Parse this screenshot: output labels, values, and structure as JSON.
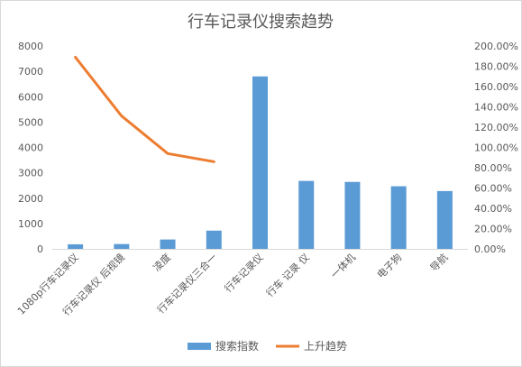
{
  "chart_data": {
    "type": "bar",
    "title": "行车记录仪搜索趋势",
    "categories": [
      "1080p行车记录仪",
      "行车记录仪 后视镜",
      "凌度",
      "行车记录仪三合一",
      "行车记录仪",
      "行车 记录 仪",
      "一体机",
      "电子狗",
      "导航"
    ],
    "y_left_ticks": [
      "0",
      "1000",
      "2000",
      "3000",
      "4000",
      "5000",
      "6000",
      "7000",
      "8000"
    ],
    "y_right_ticks": [
      "0.00%",
      "20.00%",
      "40.00%",
      "60.00%",
      "80.00%",
      "100.00%",
      "120.00%",
      "140.00%",
      "160.00%",
      "180.00%",
      "200.00%"
    ],
    "ylim_left": [
      0,
      8000
    ],
    "ylim_right": [
      0,
      2.0
    ],
    "series": [
      {
        "name": "搜索指数",
        "type": "bar",
        "axis": "left",
        "color": "#5b9bd5",
        "values": [
          180,
          190,
          370,
          720,
          6800,
          2680,
          2640,
          2470,
          2280
        ]
      },
      {
        "name": "上升趋势",
        "type": "line",
        "axis": "right",
        "color": "#ed7d31",
        "values": [
          1.89,
          1.31,
          0.94,
          0.86,
          null,
          null,
          null,
          null,
          null
        ]
      }
    ],
    "legend_position": "bottom",
    "grid": false
  }
}
